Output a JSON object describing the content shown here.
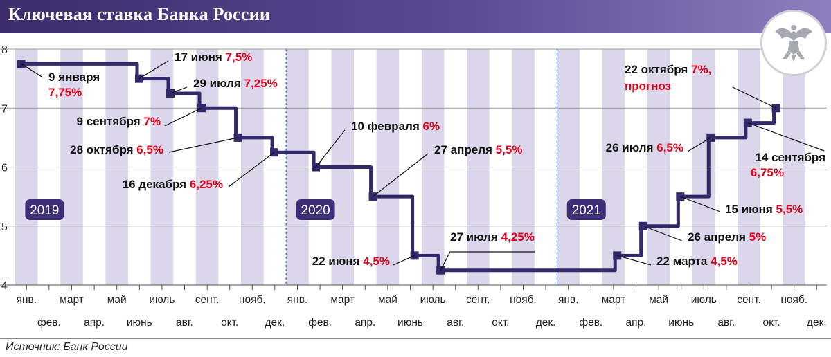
{
  "title": "Ключевая ставка Банка России",
  "source": "Источник: Банк России",
  "colors": {
    "header_gradient_start": "#3c2c6c",
    "line": "#33286a",
    "year_badge": "#3c2f78",
    "stripe": "#dcd6eb",
    "date_text": "#111111",
    "value_text": "#e3001b",
    "grid": "#9a9a9a",
    "year_separator": "#2f7fd6"
  },
  "icons": {
    "emblem": "double-headed-eagle-icon"
  },
  "chart_data": {
    "type": "line",
    "step": true,
    "title": "Ключевая ставка Банка России",
    "xlabel": "",
    "ylabel": "",
    "ylim": [
      4,
      8
    ],
    "y_ticks": [
      "4",
      "5",
      "6",
      "7",
      "8"
    ],
    "xlim": [
      "2019-01-01",
      "2021-12-31"
    ],
    "grid": {
      "horizontal": true,
      "vertical": false
    },
    "alternating_month_stripes": true,
    "year_labels": [
      "2019",
      "2020",
      "2021"
    ],
    "month_labels_top": [
      "янв.",
      "март",
      "май",
      "июль",
      "сент.",
      "нояб."
    ],
    "month_labels_bottom": [
      "фев.",
      "апр.",
      "июнь",
      "авг.",
      "окт.",
      "дек."
    ],
    "series": [
      {
        "x": [
          "2019-01-09",
          "2019-06-17",
          "2019-07-29",
          "2019-09-09",
          "2019-10-28",
          "2019-12-16",
          "2020-02-10",
          "2020-04-27",
          "2020-06-22",
          "2020-07-27",
          "2021-03-22",
          "2021-04-26",
          "2021-06-15",
          "2021-07-26",
          "2021-09-14",
          "2021-10-22"
        ],
        "y": [
          7.75,
          7.5,
          7.25,
          7.0,
          6.5,
          6.25,
          6.0,
          5.5,
          4.5,
          4.25,
          4.5,
          5.0,
          5.5,
          6.5,
          6.75,
          7.0
        ],
        "end_date": "2021-12-31"
      }
    ],
    "annotations": [
      {
        "date": "9 января",
        "value": "7,75%"
      },
      {
        "date": "17 июня",
        "value": "7,5%"
      },
      {
        "date": "29 июля",
        "value": "7,25%"
      },
      {
        "date": "9 сентября",
        "value": "7%"
      },
      {
        "date": "28 октября",
        "value": "6,5%"
      },
      {
        "date": "16 декабря",
        "value": "6,25%"
      },
      {
        "date": "10 февраля",
        "value": "6%"
      },
      {
        "date": "27 апреля",
        "value": "5,5%"
      },
      {
        "date": "22 июня",
        "value": "4,5%"
      },
      {
        "date": "27 июля",
        "value": "4,25%"
      },
      {
        "date": "22 марта",
        "value": "4,5%"
      },
      {
        "date": "26 апреля",
        "value": "5%"
      },
      {
        "date": "15 июня",
        "value": "5,5%"
      },
      {
        "date": "26 июля",
        "value": "6,5%"
      },
      {
        "date": "14 сентября",
        "value": "6,75%"
      },
      {
        "date": "22 октября",
        "value": "7%,",
        "note": "прогноз"
      }
    ]
  }
}
